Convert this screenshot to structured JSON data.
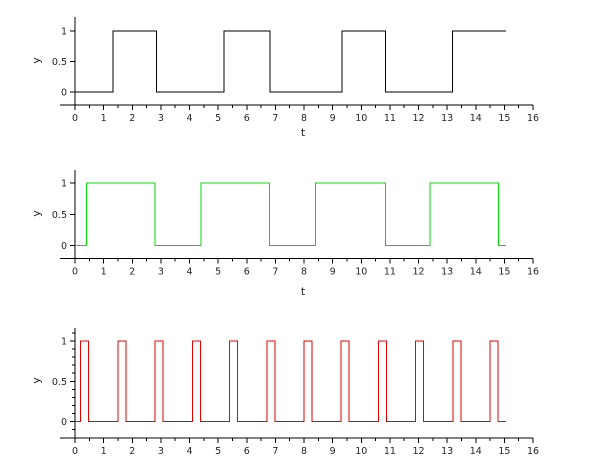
{
  "figure": {
    "background": "#ffffff",
    "axis_color": "#000000",
    "tick_label_color": "#262626"
  },
  "chart_data": [
    {
      "type": "line",
      "subtype": "square-wave",
      "title": "",
      "xlabel": "t",
      "ylabel": "y",
      "xlim": [
        0,
        16
      ],
      "ylim": [
        0,
        1
      ],
      "grid": false,
      "legend": null,
      "x_major_ticks": [
        0,
        1,
        2,
        3,
        4,
        5,
        6,
        7,
        8,
        9,
        10,
        11,
        12,
        13,
        14,
        15,
        16
      ],
      "x_tick_labels": [
        "0",
        "1",
        "2",
        "3",
        "4",
        "5",
        "6",
        "7",
        "8",
        "9",
        "10",
        "11",
        "12",
        "13",
        "14",
        "15",
        "16"
      ],
      "x_minor_step": 0.5,
      "y_major_ticks": [
        0,
        0.5,
        1
      ],
      "y_tick_labels": [
        "0",
        "0.5",
        "1"
      ],
      "y_minor_step": null,
      "line_color": "#000000",
      "low": 0,
      "high": 1,
      "domain": [
        0,
        15.05
      ],
      "high_intervals": [
        [
          1.32,
          2.85
        ],
        [
          5.2,
          6.81
        ],
        [
          9.33,
          10.84
        ],
        [
          13.18,
          15.05
        ]
      ]
    },
    {
      "type": "line",
      "subtype": "square-wave",
      "title": "",
      "xlabel": "t",
      "ylabel": "y",
      "xlim": [
        0,
        16
      ],
      "ylim": [
        0,
        1
      ],
      "grid": false,
      "legend": null,
      "x_major_ticks": [
        0,
        1,
        2,
        3,
        4,
        5,
        6,
        7,
        8,
        9,
        10,
        11,
        12,
        13,
        14,
        15,
        16
      ],
      "x_tick_labels": [
        "0",
        "1",
        "2",
        "3",
        "4",
        "5",
        "6",
        "7",
        "8",
        "9",
        "10",
        "11",
        "12",
        "13",
        "14",
        "15",
        "16"
      ],
      "x_minor_step": 0.5,
      "y_major_ticks": [
        0,
        0.5,
        1
      ],
      "y_tick_labels": [
        "0",
        "0.5",
        "1"
      ],
      "y_minor_step": null,
      "line_color": "#00dd00",
      "low": 0,
      "high": 1,
      "domain": [
        0,
        15.05
      ],
      "high_intervals": [
        [
          0.41,
          2.8
        ],
        [
          4.4,
          6.8
        ],
        [
          8.4,
          10.84
        ],
        [
          12.4,
          14.8
        ]
      ]
    },
    {
      "type": "line",
      "subtype": "square-wave",
      "title": "",
      "xlabel": "",
      "ylabel": "y",
      "xlim": [
        0,
        16
      ],
      "ylim": [
        0,
        1
      ],
      "grid": false,
      "legend": null,
      "x_major_ticks": [
        0,
        1,
        2,
        3,
        4,
        5,
        6,
        7,
        8,
        9,
        10,
        11,
        12,
        13,
        14,
        15,
        16
      ],
      "x_tick_labels": [
        "0",
        "1",
        "2",
        "3",
        "4",
        "5",
        "6",
        "7",
        "8",
        "9",
        "10",
        "11",
        "12",
        "13",
        "14",
        "15",
        "16"
      ],
      "x_minor_step": 0.5,
      "y_major_ticks": [
        0,
        0.5,
        1
      ],
      "y_tick_labels": [
        "0",
        "0.5",
        "1"
      ],
      "y_minor_step": 0.1,
      "line_color": "#e60000",
      "low": 0,
      "high": 1,
      "domain": [
        0,
        15.05
      ],
      "high_intervals": [
        [
          0.2,
          0.48
        ],
        [
          1.5,
          1.78
        ],
        [
          2.8,
          3.08
        ],
        [
          4.1,
          4.38
        ],
        [
          5.4,
          5.68
        ],
        [
          6.7,
          6.98
        ],
        [
          8.0,
          8.28
        ],
        [
          9.3,
          9.58
        ],
        [
          10.6,
          10.88
        ],
        [
          11.9,
          12.18
        ],
        [
          13.2,
          13.48
        ],
        [
          14.5,
          14.78
        ]
      ]
    }
  ]
}
